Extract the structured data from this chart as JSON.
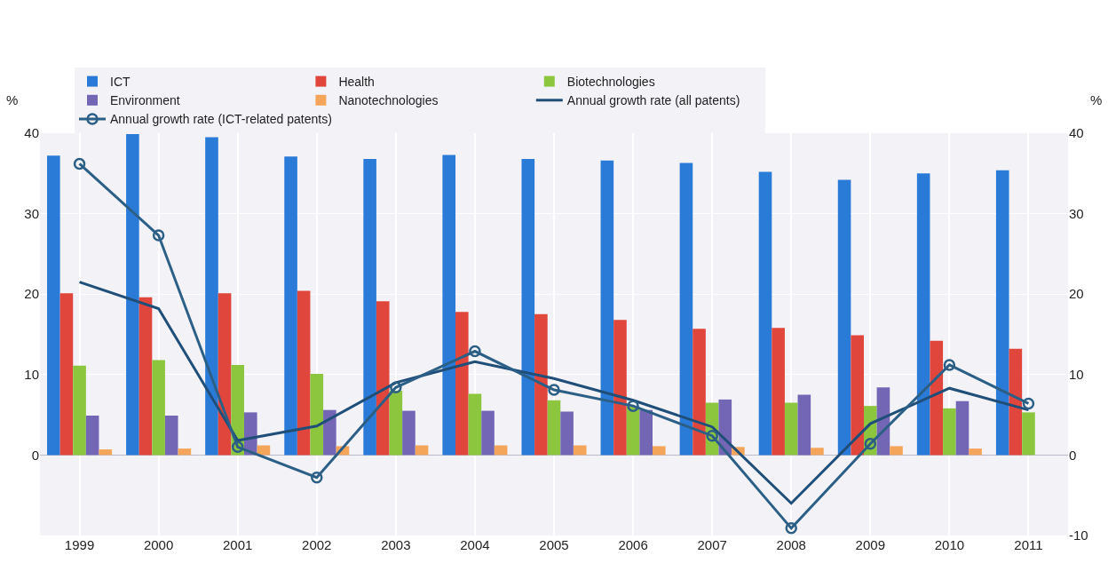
{
  "chart_data": {
    "type": "bar",
    "ylabel": "%",
    "y2label": "%",
    "categories": [
      "1999",
      "2000",
      "2001",
      "2002",
      "2003",
      "2004",
      "2005",
      "2006",
      "2007",
      "2008",
      "2009",
      "2010",
      "2011"
    ],
    "series": [
      {
        "name": "ICT",
        "color": "#2a7bd8",
        "values": [
          37.2,
          39.9,
          39.5,
          37.1,
          36.8,
          37.3,
          36.8,
          36.6,
          36.3,
          35.2,
          34.2,
          35.0,
          35.4
        ]
      },
      {
        "name": "Health",
        "color": "#e0463c",
        "values": [
          20.1,
          19.6,
          20.1,
          20.4,
          19.1,
          17.8,
          17.5,
          16.8,
          15.7,
          15.8,
          14.9,
          14.2,
          13.2
        ]
      },
      {
        "name": "Biotechnologies",
        "color": "#8cc63f",
        "values": [
          11.1,
          11.8,
          11.2,
          10.1,
          8.0,
          7.6,
          6.8,
          6.0,
          6.5,
          6.5,
          6.1,
          5.8,
          5.3
        ]
      },
      {
        "name": "Environment",
        "color": "#7367b5",
        "values": [
          4.9,
          4.9,
          5.3,
          5.6,
          5.5,
          5.5,
          5.4,
          5.6,
          6.9,
          7.5,
          8.4,
          6.7,
          null
        ]
      },
      {
        "name": "Nanotechnologies",
        "color": "#f5a55a",
        "values": [
          0.7,
          0.8,
          1.2,
          1.1,
          1.2,
          1.2,
          1.2,
          1.1,
          1.0,
          0.9,
          1.1,
          0.8,
          null
        ]
      },
      {
        "name": "Annual growth rate (all patents)",
        "type": "line",
        "axis": "y2",
        "marker": "none",
        "color": "#1f4e79",
        "values": [
          21.5,
          18.2,
          1.8,
          3.6,
          9.0,
          11.6,
          9.5,
          6.8,
          3.5,
          -6.0,
          3.9,
          8.3,
          5.6
        ]
      },
      {
        "name": "Annual growth rate (ICT-related patents)",
        "type": "line",
        "axis": "y2",
        "marker": "circle",
        "color": "#2c5f86",
        "values": [
          36.2,
          27.3,
          1.0,
          -2.8,
          8.4,
          12.9,
          8.1,
          6.1,
          2.4,
          -9.1,
          1.4,
          11.2,
          6.4
        ]
      }
    ],
    "ylim": [
      -10,
      40
    ],
    "yticks": [
      {
        "value": -10,
        "label": null
      },
      0,
      10,
      20,
      30,
      40
    ],
    "y2lim": [
      -10,
      40
    ],
    "y2ticks": [
      -10,
      0,
      10,
      20,
      30,
      40
    ],
    "grid": true,
    "legend": "top"
  }
}
